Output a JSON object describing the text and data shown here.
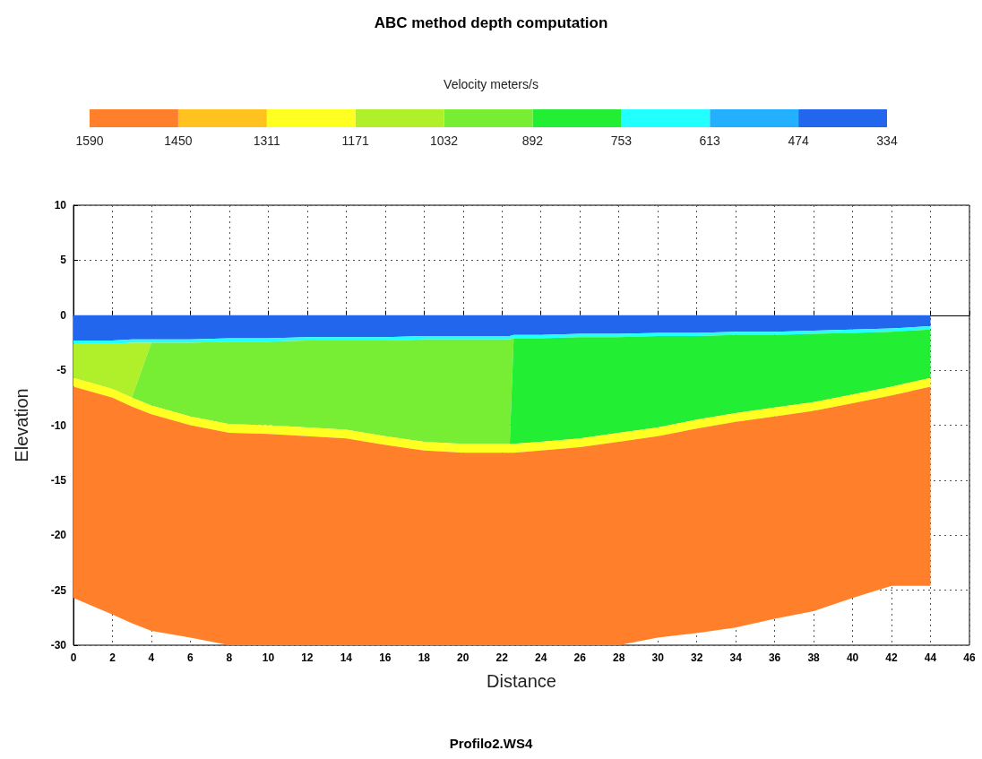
{
  "chart_data": {
    "type": "area",
    "title": "ABC method depth computation",
    "xlabel": "Distance",
    "ylabel": "Elevation",
    "clabel": "Velocity meters/s",
    "clim": [
      1590,
      334
    ],
    "cticks": [
      1590,
      1450,
      1311,
      1171,
      1032,
      892,
      753,
      613,
      474,
      334
    ],
    "colors": [
      "#ff7f2a",
      "#ffc21f",
      "#ffff22",
      "#b0f02a",
      "#77ee33",
      "#22ee33",
      "#22ffff",
      "#22b0ff",
      "#2266ee"
    ],
    "annotations": [
      "Profilo2.WS4"
    ],
    "stacked": true,
    "grid": true,
    "xlim": [
      0,
      46
    ],
    "xticks": [
      0,
      2,
      4,
      6,
      8,
      10,
      12,
      14,
      16,
      18,
      20,
      22,
      24,
      26,
      28,
      30,
      32,
      34,
      36,
      38,
      40,
      42,
      44,
      46
    ],
    "ylim": [
      -30,
      10
    ],
    "yticks": [
      -30,
      -25,
      -20,
      -15,
      -10,
      -5,
      0,
      5,
      10
    ],
    "x": [
      0,
      2,
      3,
      4,
      6,
      8,
      10,
      12,
      14,
      16,
      18,
      20,
      22,
      22.4,
      22.6,
      24,
      26,
      28,
      30,
      32,
      34,
      36,
      38,
      40,
      42,
      44
    ],
    "series": [
      {
        "color": "#2266ee",
        "values": [
          -2.3,
          -2.3,
          -2.2,
          -2.2,
          -2.2,
          -2.1,
          -2.1,
          -2.0,
          -2.0,
          -2.0,
          -1.9,
          -1.9,
          -1.9,
          -1.9,
          -1.8,
          -1.8,
          -1.7,
          -1.7,
          -1.6,
          -1.6,
          -1.5,
          -1.5,
          -1.4,
          -1.3,
          -1.2,
          -1.0
        ]
      },
      {
        "color": "#22ffff",
        "values": [
          -0.3,
          -0.3,
          -0.3,
          -0.3,
          -0.3,
          -0.3,
          -0.3,
          -0.3,
          -0.3,
          -0.3,
          -0.3,
          -0.3,
          -0.3,
          -0.3,
          -0.3,
          -0.3,
          -0.3,
          -0.3,
          -0.3,
          -0.3,
          -0.3,
          -0.3,
          -0.3,
          -0.3,
          -0.3,
          -0.3
        ]
      },
      {
        "color": "#b0f02a",
        "values": [
          -3.1,
          -4.1,
          -5.0,
          0,
          null,
          null,
          null,
          null,
          null,
          null,
          null,
          null,
          null,
          null,
          null,
          null,
          null,
          null,
          null,
          null,
          null,
          null,
          null,
          null,
          null,
          null
        ]
      },
      {
        "color": "#77ee33",
        "values": [
          null,
          null,
          0,
          -5.7,
          -6.7,
          -7.5,
          -7.6,
          -7.9,
          -8.1,
          -8.7,
          -9.3,
          -9.5,
          -9.5,
          -9.5,
          0,
          null,
          null,
          null,
          null,
          null,
          null,
          null,
          null,
          null,
          null,
          null
        ]
      },
      {
        "color": "#22ee33",
        "values": [
          null,
          null,
          null,
          null,
          null,
          null,
          null,
          null,
          null,
          null,
          null,
          null,
          null,
          0,
          -9.6,
          -9.4,
          -9.2,
          -8.7,
          -8.3,
          -7.6,
          -7.1,
          -6.6,
          -6.2,
          -5.6,
          -5.0,
          -4.4
        ]
      },
      {
        "color": "#ffff22",
        "values": [
          -0.8,
          -0.8,
          -0.8,
          -0.8,
          -0.8,
          -0.8,
          -0.8,
          -0.8,
          -0.8,
          -0.8,
          -0.8,
          -0.8,
          -0.8,
          -0.8,
          -0.8,
          -0.8,
          -0.8,
          -0.8,
          -0.8,
          -0.8,
          -0.8,
          -0.8,
          -0.8,
          -0.8,
          -0.8,
          -0.8
        ]
      },
      {
        "color": "#ff7f2a",
        "values": [
          -19.2,
          -19.7,
          -19.7,
          -19.7,
          -19.3,
          -19.3,
          -19.2,
          -19.0,
          -18.8,
          -18.2,
          -17.7,
          -17.5,
          -17.5,
          -17.5,
          -17.5,
          -17.7,
          -18.0,
          -18.5,
          -18.3,
          -18.6,
          -18.7,
          -18.4,
          -18.2,
          -17.7,
          -17.3,
          -18.1
        ]
      }
    ]
  }
}
